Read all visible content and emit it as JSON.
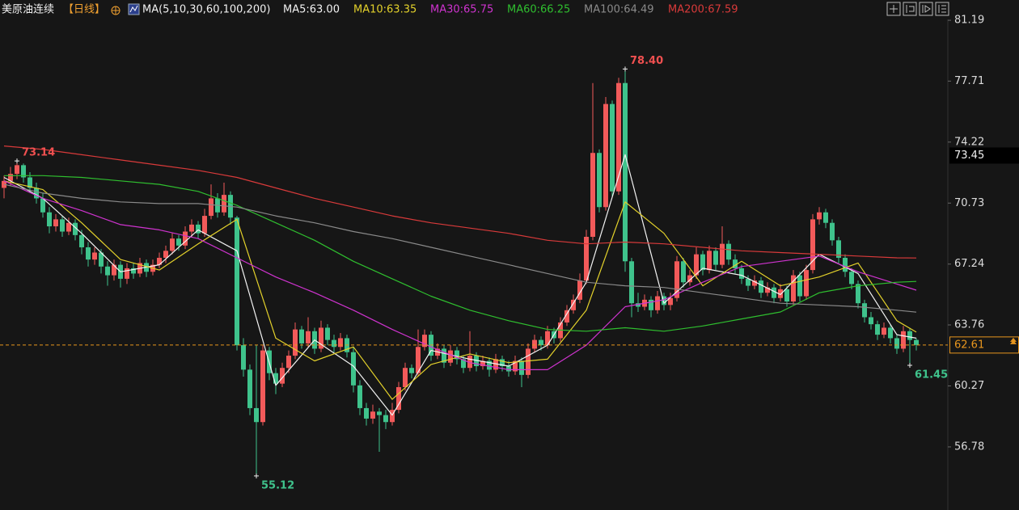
{
  "chart_data": {
    "type": "candlestick",
    "title": "美原油连续",
    "period": "【日线】",
    "indicator": "MA(5,10,30,60,100,200)",
    "up_color": "#f25a5a",
    "down_color": "#3fc38c",
    "ylim": [
      53.17,
      82.35
    ],
    "yticks": [
      81.19,
      77.71,
      74.22,
      70.73,
      67.24,
      63.76,
      60.27,
      56.78
    ],
    "marker_price": 73.45,
    "annotations": [
      {
        "value": 78.4,
        "label": "78.40"
      },
      {
        "value": 73.14,
        "label": "73.14"
      },
      {
        "value": 55.12,
        "label": "55.12"
      },
      {
        "value": 61.45,
        "label": "61.45"
      }
    ],
    "ohlc": [
      [
        71.6,
        72.3,
        71.0,
        72.0
      ],
      [
        72.0,
        72.8,
        71.7,
        72.4
      ],
      [
        72.4,
        73.14,
        72.1,
        72.9
      ],
      [
        72.9,
        73.0,
        71.9,
        72.2
      ],
      [
        72.2,
        72.5,
        71.3,
        71.6
      ],
      [
        71.6,
        71.9,
        70.7,
        71.0
      ],
      [
        71.0,
        71.3,
        69.9,
        70.2
      ],
      [
        70.2,
        70.5,
        69.0,
        69.4
      ],
      [
        69.4,
        70.1,
        69.1,
        69.8
      ],
      [
        69.8,
        70.0,
        68.8,
        69.1
      ],
      [
        69.1,
        69.9,
        68.9,
        69.6
      ],
      [
        69.6,
        69.8,
        68.6,
        68.9
      ],
      [
        68.9,
        69.2,
        67.8,
        68.2
      ],
      [
        68.2,
        68.5,
        67.1,
        67.5
      ],
      [
        67.5,
        68.2,
        67.2,
        67.9
      ],
      [
        67.9,
        68.1,
        66.7,
        67.1
      ],
      [
        67.1,
        67.4,
        66.0,
        66.6
      ],
      [
        66.6,
        67.5,
        66.3,
        67.2
      ],
      [
        67.2,
        67.4,
        65.9,
        66.4
      ],
      [
        66.4,
        67.3,
        66.1,
        67.0
      ],
      [
        67.0,
        67.3,
        66.4,
        66.7
      ],
      [
        66.7,
        67.6,
        66.5,
        67.3
      ],
      [
        67.3,
        67.5,
        66.5,
        66.8
      ],
      [
        66.8,
        67.5,
        66.6,
        67.2
      ],
      [
        67.2,
        67.9,
        67.0,
        67.6
      ],
      [
        67.6,
        68.3,
        67.3,
        68.0
      ],
      [
        68.0,
        69.0,
        67.8,
        68.7
      ],
      [
        68.7,
        68.9,
        68.0,
        68.3
      ],
      [
        68.3,
        69.4,
        68.1,
        69.1
      ],
      [
        69.1,
        69.8,
        68.8,
        69.5
      ],
      [
        69.5,
        69.7,
        68.7,
        69.0
      ],
      [
        69.0,
        70.4,
        68.8,
        70.0
      ],
      [
        70.0,
        71.8,
        69.8,
        71.0
      ],
      [
        71.0,
        71.3,
        69.9,
        70.2
      ],
      [
        70.2,
        71.9,
        70.0,
        71.2
      ],
      [
        71.2,
        71.4,
        69.5,
        69.9
      ],
      [
        69.9,
        70.0,
        62.3,
        62.6
      ],
      [
        62.6,
        63.0,
        60.8,
        61.2
      ],
      [
        61.2,
        61.5,
        58.6,
        59.0
      ],
      [
        59.0,
        62.6,
        55.12,
        58.2
      ],
      [
        58.2,
        62.6,
        58.0,
        62.3
      ],
      [
        62.3,
        62.5,
        60.6,
        61.0
      ],
      [
        61.0,
        61.3,
        59.8,
        60.4
      ],
      [
        60.4,
        61.6,
        60.2,
        61.3
      ],
      [
        61.3,
        62.3,
        61.0,
        62.0
      ],
      [
        62.0,
        63.9,
        61.8,
        63.5
      ],
      [
        63.5,
        63.7,
        62.4,
        62.7
      ],
      [
        62.7,
        64.2,
        62.5,
        63.4
      ],
      [
        63.4,
        63.6,
        62.1,
        62.4
      ],
      [
        62.4,
        64.0,
        62.2,
        63.6
      ],
      [
        63.6,
        63.8,
        62.6,
        62.9
      ],
      [
        62.9,
        63.2,
        62.2,
        62.5
      ],
      [
        62.5,
        63.3,
        62.3,
        63.0
      ],
      [
        63.0,
        63.2,
        61.9,
        62.2
      ],
      [
        62.2,
        62.5,
        59.9,
        60.3
      ],
      [
        60.3,
        60.6,
        58.6,
        59.0
      ],
      [
        59.0,
        59.3,
        58.0,
        58.4
      ],
      [
        58.4,
        59.2,
        58.1,
        58.8
      ],
      [
        58.8,
        59.0,
        56.5,
        58.6
      ],
      [
        58.6,
        58.9,
        57.8,
        58.2
      ],
      [
        58.2,
        59.3,
        58.0,
        58.9
      ],
      [
        58.9,
        60.5,
        58.7,
        60.2
      ],
      [
        60.2,
        61.6,
        60.0,
        61.3
      ],
      [
        61.3,
        61.5,
        60.7,
        61.0
      ],
      [
        61.0,
        63.5,
        60.8,
        62.5
      ],
      [
        62.5,
        63.5,
        62.3,
        63.2
      ],
      [
        63.2,
        63.4,
        61.7,
        62.0
      ],
      [
        62.0,
        62.7,
        61.8,
        62.4
      ],
      [
        62.4,
        62.6,
        61.3,
        61.6
      ],
      [
        61.6,
        62.6,
        61.4,
        62.3
      ],
      [
        62.3,
        62.5,
        61.5,
        61.8
      ],
      [
        61.8,
        62.0,
        61.0,
        61.3
      ],
      [
        61.3,
        63.4,
        61.1,
        62.0
      ],
      [
        62.0,
        62.2,
        61.1,
        61.4
      ],
      [
        61.4,
        62.0,
        61.2,
        61.7
      ],
      [
        61.7,
        61.9,
        60.8,
        61.2
      ],
      [
        61.2,
        62.1,
        61.0,
        61.8
      ],
      [
        61.8,
        62.0,
        61.1,
        61.4
      ],
      [
        61.4,
        61.7,
        60.8,
        61.1
      ],
      [
        61.1,
        62.0,
        60.9,
        61.7
      ],
      [
        61.7,
        61.9,
        60.2,
        60.9
      ],
      [
        60.9,
        62.7,
        60.7,
        62.4
      ],
      [
        62.4,
        63.2,
        62.2,
        62.9
      ],
      [
        62.9,
        63.1,
        62.3,
        62.6
      ],
      [
        62.6,
        63.7,
        62.4,
        63.4
      ],
      [
        63.4,
        63.6,
        62.7,
        63.0
      ],
      [
        63.0,
        64.2,
        62.8,
        63.9
      ],
      [
        63.9,
        64.9,
        63.7,
        64.6
      ],
      [
        64.6,
        65.5,
        64.4,
        65.2
      ],
      [
        65.2,
        66.7,
        65.0,
        66.3
      ],
      [
        66.3,
        69.2,
        66.1,
        68.8
      ],
      [
        68.8,
        77.6,
        68.6,
        73.6
      ],
      [
        73.6,
        73.8,
        70.2,
        70.5
      ],
      [
        70.5,
        76.8,
        70.3,
        76.4
      ],
      [
        76.4,
        76.6,
        71.1,
        71.4
      ],
      [
        71.4,
        77.9,
        71.2,
        77.6
      ],
      [
        77.6,
        78.4,
        66.8,
        67.4
      ],
      [
        67.4,
        67.6,
        64.2,
        65.0
      ],
      [
        65.0,
        65.6,
        64.5,
        64.8
      ],
      [
        64.8,
        65.5,
        64.6,
        65.2
      ],
      [
        65.2,
        65.4,
        64.2,
        64.6
      ],
      [
        64.6,
        65.7,
        64.4,
        65.4
      ],
      [
        65.4,
        65.6,
        64.6,
        64.9
      ],
      [
        64.9,
        65.6,
        64.6,
        65.3
      ],
      [
        65.3,
        67.7,
        65.1,
        67.4
      ],
      [
        67.4,
        67.6,
        65.9,
        66.2
      ],
      [
        66.2,
        66.9,
        66.0,
        66.6
      ],
      [
        66.6,
        68.2,
        66.4,
        67.8
      ],
      [
        67.8,
        68.0,
        66.6,
        66.9
      ],
      [
        66.9,
        68.3,
        66.7,
        68.0
      ],
      [
        68.0,
        68.2,
        66.9,
        67.2
      ],
      [
        67.2,
        69.4,
        67.0,
        68.4
      ],
      [
        68.4,
        68.6,
        67.2,
        67.5
      ],
      [
        67.5,
        67.8,
        66.7,
        67.0
      ],
      [
        67.0,
        67.2,
        66.1,
        66.4
      ],
      [
        66.4,
        66.6,
        65.7,
        66.0
      ],
      [
        66.0,
        66.6,
        65.8,
        66.3
      ],
      [
        66.3,
        66.5,
        65.3,
        65.6
      ],
      [
        65.6,
        66.2,
        65.4,
        65.9
      ],
      [
        65.9,
        66.1,
        65.0,
        65.3
      ],
      [
        65.3,
        66.1,
        65.1,
        65.8
      ],
      [
        65.8,
        66.0,
        64.8,
        65.1
      ],
      [
        65.1,
        66.9,
        64.9,
        66.6
      ],
      [
        66.6,
        66.8,
        65.1,
        65.4
      ],
      [
        65.4,
        67.2,
        65.2,
        66.9
      ],
      [
        66.9,
        70.1,
        66.7,
        69.8
      ],
      [
        69.8,
        70.5,
        69.5,
        70.2
      ],
      [
        70.2,
        70.4,
        69.3,
        69.6
      ],
      [
        69.6,
        69.8,
        68.3,
        68.6
      ],
      [
        68.6,
        68.8,
        67.3,
        67.6
      ],
      [
        67.6,
        67.8,
        66.5,
        66.8
      ],
      [
        66.8,
        67.0,
        65.8,
        66.1
      ],
      [
        66.1,
        66.3,
        64.7,
        65.0
      ],
      [
        65.0,
        65.2,
        63.9,
        64.2
      ],
      [
        64.2,
        64.5,
        63.5,
        63.8
      ],
      [
        63.8,
        64.0,
        62.9,
        63.2
      ],
      [
        63.2,
        63.9,
        63.0,
        63.6
      ],
      [
        63.6,
        63.8,
        62.7,
        63.0
      ],
      [
        63.0,
        63.2,
        62.1,
        62.4
      ],
      [
        62.4,
        63.7,
        62.2,
        63.4
      ],
      [
        63.4,
        63.6,
        61.45,
        62.9
      ],
      [
        62.9,
        63.0,
        62.3,
        62.61
      ]
    ],
    "x": [
      0,
      6,
      12,
      18,
      24,
      30,
      36,
      42,
      48,
      54,
      60,
      66,
      72,
      78,
      84,
      90,
      96,
      102,
      108,
      114,
      120,
      126,
      132,
      138,
      141
    ],
    "series": [
      {
        "name": "MA5:63.00",
        "color": "#f2f2f2",
        "values": [
          72.2,
          71.0,
          69.0,
          66.8,
          67.2,
          69.2,
          68.0,
          60.3,
          62.9,
          61.4,
          58.6,
          62.3,
          61.8,
          61.4,
          62.6,
          66.2,
          73.5,
          65.0,
          67.0,
          66.6,
          65.5,
          67.8,
          66.7,
          63.2,
          63.0
        ]
      },
      {
        "name": "MA10:63.35",
        "color": "#e3d12b",
        "values": [
          72.0,
          71.5,
          69.6,
          67.5,
          66.9,
          68.4,
          69.8,
          63.0,
          61.7,
          62.5,
          59.5,
          61.5,
          62.1,
          61.6,
          61.8,
          64.6,
          70.8,
          69.0,
          66.0,
          67.4,
          66.0,
          66.5,
          67.3,
          64.0,
          63.35
        ]
      },
      {
        "name": "MA30:65.75",
        "color": "#cf33cf",
        "values": [
          72.0,
          71.0,
          70.3,
          69.5,
          69.2,
          68.7,
          67.6,
          66.5,
          65.6,
          64.6,
          63.5,
          62.5,
          61.6,
          61.2,
          61.2,
          62.6,
          64.8,
          65.2,
          66.2,
          67.1,
          67.4,
          67.7,
          66.8,
          66.1,
          65.75
        ]
      },
      {
        "name": "MA60:66.25",
        "color": "#2fbf2f",
        "values": [
          72.3,
          72.3,
          72.2,
          72.0,
          71.8,
          71.4,
          70.6,
          69.6,
          68.6,
          67.4,
          66.4,
          65.4,
          64.6,
          64.0,
          63.5,
          63.4,
          63.6,
          63.4,
          63.7,
          64.1,
          64.5,
          65.6,
          66.0,
          66.2,
          66.25
        ]
      },
      {
        "name": "MA100:64.49",
        "color": "#8a8a8a",
        "values": [
          71.8,
          71.3,
          71.0,
          70.8,
          70.7,
          70.7,
          70.5,
          70.0,
          69.6,
          69.1,
          68.7,
          68.2,
          67.7,
          67.2,
          66.7,
          66.2,
          66.0,
          65.9,
          65.6,
          65.3,
          65.0,
          64.9,
          64.8,
          64.6,
          64.49
        ]
      },
      {
        "name": "MA200:67.59",
        "color": "#d83a3a",
        "values": [
          74.0,
          73.8,
          73.5,
          73.2,
          72.9,
          72.6,
          72.2,
          71.6,
          71.0,
          70.5,
          70.0,
          69.6,
          69.3,
          69.0,
          68.6,
          68.4,
          68.5,
          68.4,
          68.2,
          68.0,
          67.9,
          67.8,
          67.7,
          67.6,
          67.59
        ]
      }
    ]
  }
}
